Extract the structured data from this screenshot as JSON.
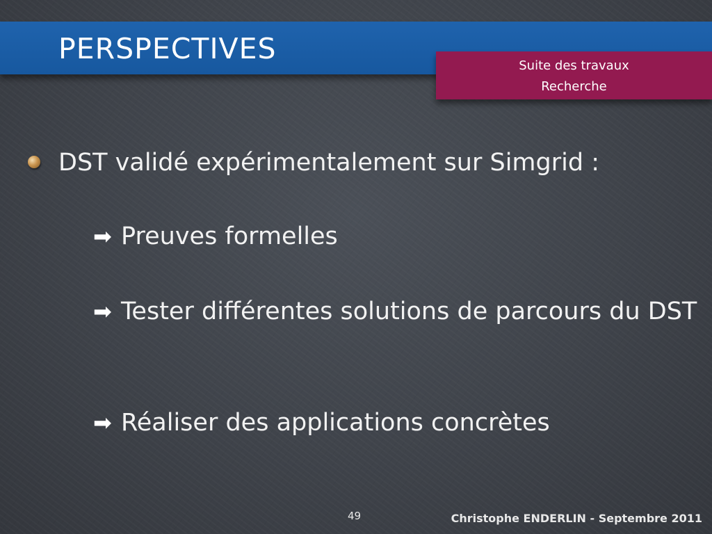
{
  "slide": {
    "title": "PERSPECTIVES",
    "section_tag": {
      "line1": "Suite des travaux",
      "line2": "Recherche"
    },
    "main_point": "DST validé expérimentalement sur Simgrid :",
    "sub_points": [
      "Preuves formelles",
      "Tester différentes solutions de parcours du DST",
      "Réaliser des applications concrètes"
    ],
    "arrow_glyph": "➡",
    "page_number": "49",
    "footer": "Christophe ENDERLIN  - Septembre 2011"
  },
  "colors": {
    "title_band": "#1f63ad",
    "section_tag": "#931a50",
    "background": "#42464d"
  }
}
